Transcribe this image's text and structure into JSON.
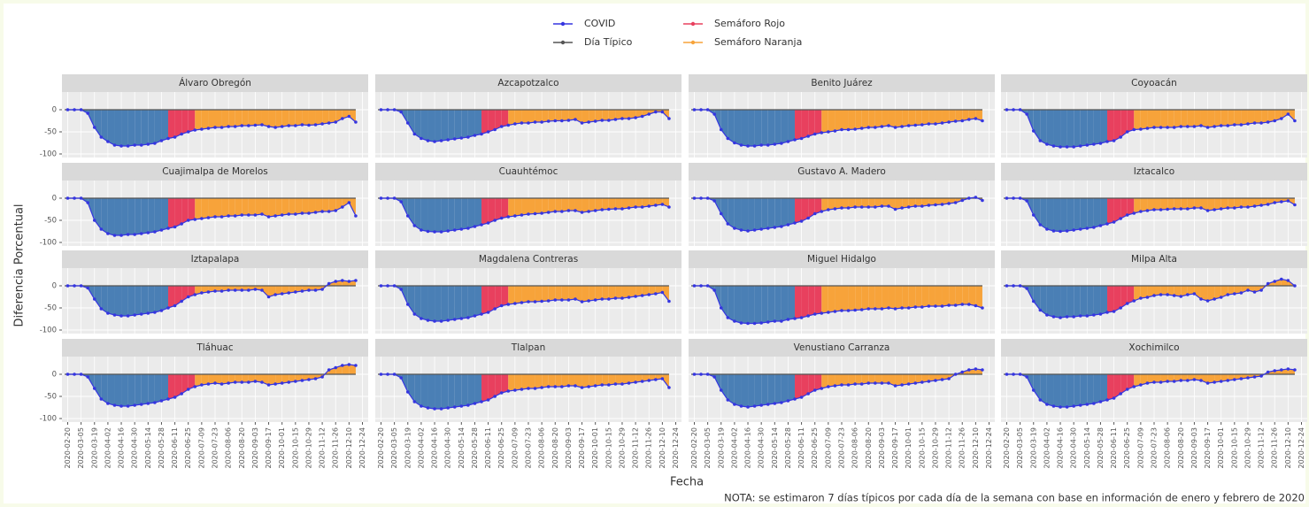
{
  "chart_data": {
    "type": "line",
    "x_label": "Fecha",
    "y_label": "Diferencia Porcentual",
    "note": "NOTA: se estimaron 7 días típicos por cada día de la semana con base en información de enero y febrero de 2020",
    "series": [
      {
        "name": "COVID",
        "color": "#3535e0"
      },
      {
        "name": "Día Típico",
        "color": "#555555",
        "value": 0
      },
      {
        "name": "Semáforo Rojo",
        "color": "#e8405e",
        "start": "2020-06-01"
      },
      {
        "name": "Semáforo Naranja",
        "color": "#f7a33a",
        "start": "2020-06-29"
      }
    ],
    "fill_color": "#4a7fb5",
    "grid": true,
    "ylim": [
      -108,
      40
    ],
    "yticks": [
      0,
      -50,
      -100
    ],
    "xlim": [
      "2020-02-14",
      "2020-12-30"
    ],
    "xticks": [
      "2020-02-20",
      "2020-03-05",
      "2020-03-19",
      "2020-04-02",
      "2020-04-16",
      "2020-04-30",
      "2020-05-14",
      "2020-05-28",
      "2020-06-11",
      "2020-06-25",
      "2020-07-09",
      "2020-07-23",
      "2020-08-06",
      "2020-08-20",
      "2020-09-03",
      "2020-09-17",
      "2020-10-01",
      "2020-10-15",
      "2020-10-29",
      "2020-11-12",
      "2020-11-26",
      "2020-12-10",
      "2020-12-24"
    ],
    "x": [
      "2020-02-20",
      "2020-02-27",
      "2020-03-05",
      "2020-03-12",
      "2020-03-19",
      "2020-03-26",
      "2020-04-02",
      "2020-04-09",
      "2020-04-16",
      "2020-04-23",
      "2020-04-30",
      "2020-05-07",
      "2020-05-14",
      "2020-05-21",
      "2020-05-28",
      "2020-06-04",
      "2020-06-11",
      "2020-06-18",
      "2020-06-25",
      "2020-07-02",
      "2020-07-09",
      "2020-07-16",
      "2020-07-23",
      "2020-07-30",
      "2020-08-06",
      "2020-08-13",
      "2020-08-20",
      "2020-08-27",
      "2020-09-03",
      "2020-09-10",
      "2020-09-17",
      "2020-09-24",
      "2020-10-01",
      "2020-10-08",
      "2020-10-15",
      "2020-10-22",
      "2020-10-29",
      "2020-11-05",
      "2020-11-12",
      "2020-11-19",
      "2020-11-26",
      "2020-12-03",
      "2020-12-10",
      "2020-12-17"
    ],
    "panels": [
      {
        "title": "Álvaro Obregón",
        "values": [
          0,
          0,
          0,
          -8,
          -40,
          -62,
          -72,
          -80,
          -82,
          -82,
          -80,
          -80,
          -78,
          -76,
          -70,
          -65,
          -62,
          -55,
          -50,
          -46,
          -44,
          -42,
          -40,
          -40,
          -38,
          -38,
          -36,
          -36,
          -35,
          -34,
          -38,
          -40,
          -38,
          -36,
          -36,
          -34,
          -35,
          -34,
          -32,
          -30,
          -28,
          -20,
          -15,
          -28
        ]
      },
      {
        "title": "Azcapotzalco",
        "values": [
          0,
          0,
          0,
          -5,
          -30,
          -55,
          -65,
          -70,
          -72,
          -70,
          -68,
          -66,
          -64,
          -62,
          -58,
          -55,
          -50,
          -45,
          -38,
          -35,
          -32,
          -30,
          -30,
          -28,
          -28,
          -26,
          -25,
          -25,
          -24,
          -22,
          -30,
          -28,
          -26,
          -24,
          -24,
          -22,
          -20,
          -20,
          -18,
          -15,
          -10,
          -5,
          -5,
          -20
        ]
      },
      {
        "title": "Benito Juárez",
        "values": [
          0,
          0,
          0,
          -10,
          -45,
          -65,
          -75,
          -80,
          -82,
          -82,
          -80,
          -80,
          -78,
          -76,
          -72,
          -68,
          -65,
          -60,
          -55,
          -52,
          -50,
          -48,
          -45,
          -45,
          -44,
          -42,
          -40,
          -40,
          -38,
          -36,
          -40,
          -38,
          -36,
          -35,
          -34,
          -32,
          -32,
          -30,
          -28,
          -26,
          -25,
          -22,
          -20,
          -25
        ]
      },
      {
        "title": "Coyoacán",
        "values": [
          0,
          0,
          0,
          -10,
          -48,
          -70,
          -78,
          -82,
          -84,
          -84,
          -84,
          -82,
          -80,
          -78,
          -76,
          -72,
          -70,
          -62,
          -50,
          -45,
          -44,
          -42,
          -40,
          -40,
          -40,
          -40,
          -38,
          -38,
          -38,
          -36,
          -40,
          -38,
          -36,
          -36,
          -34,
          -34,
          -32,
          -30,
          -30,
          -28,
          -25,
          -20,
          -10,
          -25
        ]
      },
      {
        "title": "Cuajimalpa de Morelos",
        "values": [
          0,
          0,
          0,
          -10,
          -50,
          -70,
          -80,
          -84,
          -84,
          -82,
          -82,
          -80,
          -78,
          -76,
          -72,
          -68,
          -65,
          -58,
          -50,
          -48,
          -46,
          -44,
          -42,
          -42,
          -40,
          -40,
          -38,
          -38,
          -38,
          -36,
          -42,
          -40,
          -38,
          -36,
          -36,
          -34,
          -34,
          -32,
          -30,
          -30,
          -28,
          -20,
          -10,
          -40
        ]
      },
      {
        "title": "Cuauhtémoc",
        "values": [
          0,
          0,
          0,
          -8,
          -40,
          -62,
          -72,
          -75,
          -76,
          -76,
          -74,
          -72,
          -70,
          -68,
          -64,
          -60,
          -56,
          -50,
          -45,
          -42,
          -40,
          -38,
          -36,
          -35,
          -34,
          -32,
          -30,
          -30,
          -28,
          -28,
          -32,
          -30,
          -28,
          -26,
          -25,
          -24,
          -24,
          -22,
          -20,
          -20,
          -18,
          -16,
          -14,
          -20
        ]
      },
      {
        "title": "Gustavo A. Madero",
        "values": [
          0,
          0,
          0,
          -6,
          -35,
          -58,
          -68,
          -72,
          -74,
          -72,
          -70,
          -68,
          -66,
          -64,
          -60,
          -56,
          -52,
          -45,
          -35,
          -30,
          -26,
          -24,
          -22,
          -22,
          -20,
          -20,
          -20,
          -20,
          -18,
          -18,
          -25,
          -22,
          -20,
          -18,
          -18,
          -16,
          -15,
          -14,
          -12,
          -10,
          -5,
          0,
          2,
          -5
        ]
      },
      {
        "title": "Iztacalco",
        "values": [
          0,
          0,
          0,
          -6,
          -38,
          -60,
          -70,
          -74,
          -75,
          -74,
          -72,
          -70,
          -68,
          -66,
          -62,
          -58,
          -54,
          -46,
          -38,
          -34,
          -30,
          -28,
          -26,
          -26,
          -25,
          -24,
          -24,
          -24,
          -22,
          -22,
          -28,
          -26,
          -24,
          -22,
          -22,
          -20,
          -20,
          -18,
          -16,
          -14,
          -10,
          -8,
          -6,
          -15
        ]
      },
      {
        "title": "Iztapalapa",
        "values": [
          0,
          0,
          0,
          -5,
          -30,
          -52,
          -62,
          -66,
          -68,
          -68,
          -66,
          -64,
          -62,
          -60,
          -56,
          -50,
          -45,
          -35,
          -25,
          -20,
          -16,
          -14,
          -12,
          -12,
          -10,
          -10,
          -10,
          -10,
          -8,
          -10,
          -25,
          -20,
          -18,
          -16,
          -14,
          -12,
          -10,
          -10,
          -8,
          5,
          10,
          12,
          10,
          12
        ]
      },
      {
        "title": "Magdalena Contreras",
        "values": [
          0,
          0,
          0,
          -8,
          -42,
          -64,
          -74,
          -78,
          -80,
          -80,
          -78,
          -76,
          -74,
          -72,
          -68,
          -64,
          -60,
          -52,
          -45,
          -42,
          -40,
          -38,
          -36,
          -36,
          -35,
          -34,
          -32,
          -32,
          -32,
          -30,
          -36,
          -34,
          -32,
          -30,
          -30,
          -28,
          -28,
          -26,
          -24,
          -22,
          -20,
          -18,
          -15,
          -35
        ]
      },
      {
        "title": "Miguel Hidalgo",
        "values": [
          0,
          0,
          0,
          -10,
          -50,
          -72,
          -80,
          -84,
          -85,
          -85,
          -84,
          -82,
          -80,
          -80,
          -76,
          -74,
          -72,
          -68,
          -64,
          -62,
          -60,
          -58,
          -56,
          -56,
          -55,
          -54,
          -52,
          -52,
          -52,
          -50,
          -52,
          -50,
          -50,
          -48,
          -48,
          -46,
          -46,
          -46,
          -44,
          -44,
          -42,
          -42,
          -45,
          -50
        ]
      },
      {
        "title": "Milpa Alta",
        "values": [
          0,
          0,
          0,
          -6,
          -35,
          -55,
          -66,
          -70,
          -72,
          -70,
          -70,
          -68,
          -68,
          -66,
          -64,
          -60,
          -58,
          -50,
          -40,
          -34,
          -28,
          -26,
          -22,
          -20,
          -20,
          -22,
          -24,
          -20,
          -18,
          -30,
          -34,
          -30,
          -26,
          -20,
          -18,
          -16,
          -10,
          -14,
          -10,
          5,
          10,
          15,
          12,
          0
        ]
      },
      {
        "title": "Tláhuac",
        "values": [
          0,
          0,
          0,
          -6,
          -32,
          -56,
          -66,
          -70,
          -72,
          -72,
          -70,
          -68,
          -66,
          -64,
          -60,
          -56,
          -52,
          -44,
          -34,
          -28,
          -24,
          -22,
          -20,
          -22,
          -20,
          -18,
          -18,
          -18,
          -16,
          -18,
          -24,
          -22,
          -20,
          -18,
          -16,
          -14,
          -12,
          -10,
          -6,
          10,
          15,
          20,
          22,
          20
        ]
      },
      {
        "title": "Tlalpan",
        "values": [
          0,
          0,
          0,
          -8,
          -40,
          -62,
          -72,
          -76,
          -78,
          -78,
          -76,
          -74,
          -72,
          -70,
          -66,
          -62,
          -58,
          -50,
          -42,
          -38,
          -36,
          -34,
          -32,
          -32,
          -30,
          -28,
          -28,
          -28,
          -26,
          -26,
          -30,
          -28,
          -26,
          -24,
          -24,
          -22,
          -22,
          -20,
          -18,
          -16,
          -14,
          -12,
          -10,
          -30
        ]
      },
      {
        "title": "Venustiano Carranza",
        "values": [
          0,
          0,
          0,
          -6,
          -36,
          -58,
          -68,
          -72,
          -74,
          -72,
          -70,
          -68,
          -66,
          -64,
          -60,
          -56,
          -52,
          -44,
          -36,
          -32,
          -28,
          -26,
          -24,
          -24,
          -22,
          -22,
          -20,
          -20,
          -20,
          -20,
          -26,
          -24,
          -22,
          -20,
          -18,
          -16,
          -14,
          -12,
          -10,
          0,
          5,
          10,
          12,
          10
        ]
      },
      {
        "title": "Xochimilco",
        "values": [
          0,
          0,
          0,
          -6,
          -36,
          -58,
          -68,
          -72,
          -74,
          -74,
          -72,
          -70,
          -68,
          -66,
          -62,
          -58,
          -54,
          -44,
          -34,
          -28,
          -24,
          -20,
          -18,
          -18,
          -16,
          -16,
          -14,
          -14,
          -12,
          -14,
          -20,
          -18,
          -16,
          -14,
          -12,
          -10,
          -8,
          -6,
          -4,
          5,
          8,
          10,
          12,
          10
        ]
      }
    ]
  }
}
